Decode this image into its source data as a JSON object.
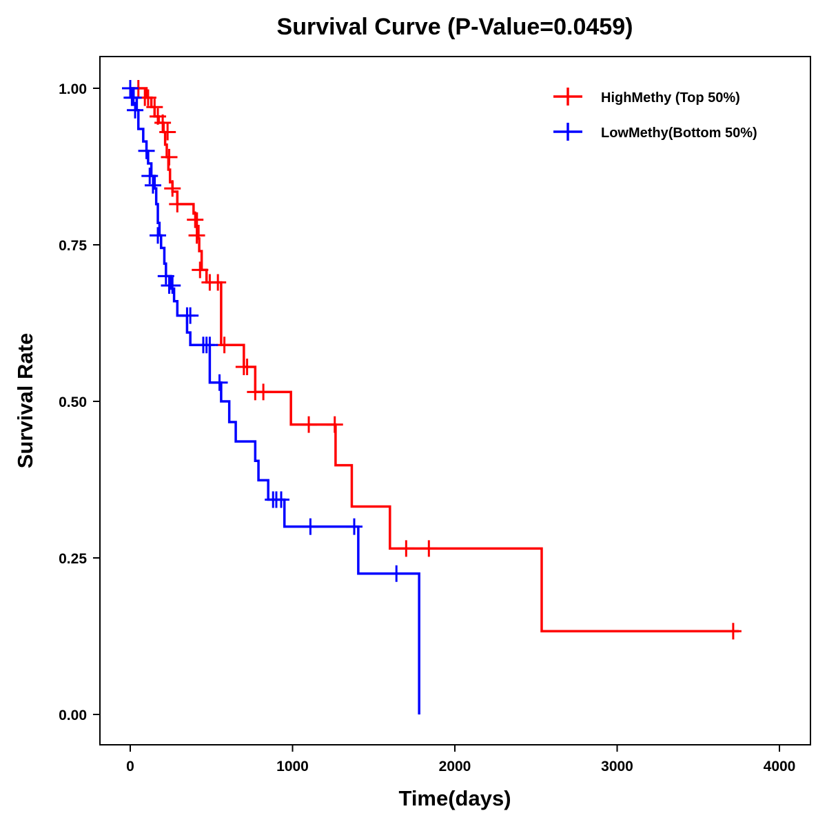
{
  "chart_data": {
    "type": "line",
    "subtype": "kaplan-meier",
    "title": "Survival Curve (P-Value=0.0459)",
    "xlabel": "Time(days)",
    "ylabel": "Survival Rate",
    "xlim": [
      -200,
      4200
    ],
    "ylim": [
      -0.05,
      1.05
    ],
    "xticks": [
      0,
      1000,
      2000,
      3000,
      4000
    ],
    "xtick_labels": [
      "0",
      "1000",
      "2000",
      "3000",
      "4000"
    ],
    "yticks": [
      0,
      0.25,
      0.5,
      0.75,
      1.0
    ],
    "ytick_labels": [
      "0.00",
      "0.25",
      "0.50",
      "0.75",
      "1.00"
    ],
    "legend_position": "top-right",
    "series": [
      {
        "name": "HighMethy (Top 50%)",
        "color": "#ff0000",
        "steps": [
          [
            0,
            1.0
          ],
          [
            100,
            0.985
          ],
          [
            130,
            0.97
          ],
          [
            150,
            0.955
          ],
          [
            175,
            0.945
          ],
          [
            205,
            0.93
          ],
          [
            215,
            0.91
          ],
          [
            225,
            0.89
          ],
          [
            235,
            0.87
          ],
          [
            245,
            0.85
          ],
          [
            260,
            0.835
          ],
          [
            290,
            0.815
          ],
          [
            390,
            0.8
          ],
          [
            410,
            0.78
          ],
          [
            420,
            0.76
          ],
          [
            425,
            0.74
          ],
          [
            440,
            0.71
          ],
          [
            470,
            0.69
          ],
          [
            560,
            0.59
          ],
          [
            700,
            0.555
          ],
          [
            770,
            0.515
          ],
          [
            990,
            0.463
          ],
          [
            1265,
            0.398
          ],
          [
            1365,
            0.332
          ],
          [
            1600,
            0.265
          ],
          [
            2535,
            0.133
          ]
        ],
        "end_time": 3750,
        "censored": [
          [
            50,
            1.0
          ],
          [
            90,
            0.985
          ],
          [
            110,
            0.985
          ],
          [
            150,
            0.97
          ],
          [
            170,
            0.955
          ],
          [
            200,
            0.945
          ],
          [
            230,
            0.93
          ],
          [
            240,
            0.89
          ],
          [
            260,
            0.84
          ],
          [
            290,
            0.815
          ],
          [
            400,
            0.79
          ],
          [
            410,
            0.765
          ],
          [
            430,
            0.71
          ],
          [
            490,
            0.69
          ],
          [
            540,
            0.69
          ],
          [
            580,
            0.59
          ],
          [
            700,
            0.555
          ],
          [
            720,
            0.555
          ],
          [
            770,
            0.515
          ],
          [
            820,
            0.515
          ],
          [
            1100,
            0.463
          ],
          [
            1260,
            0.463
          ],
          [
            1700,
            0.265
          ],
          [
            1840,
            0.265
          ],
          [
            3715,
            0.133
          ]
        ]
      },
      {
        "name": "LowMethy(Bottom 50%)",
        "color": "#0000ff",
        "steps": [
          [
            0,
            1.0
          ],
          [
            20,
            0.985
          ],
          [
            40,
            0.965
          ],
          [
            50,
            0.935
          ],
          [
            80,
            0.915
          ],
          [
            100,
            0.9
          ],
          [
            110,
            0.88
          ],
          [
            130,
            0.86
          ],
          [
            150,
            0.84
          ],
          [
            160,
            0.815
          ],
          [
            170,
            0.785
          ],
          [
            180,
            0.765
          ],
          [
            190,
            0.745
          ],
          [
            210,
            0.72
          ],
          [
            220,
            0.7
          ],
          [
            250,
            0.68
          ],
          [
            270,
            0.66
          ],
          [
            290,
            0.637
          ],
          [
            350,
            0.61
          ],
          [
            370,
            0.59
          ],
          [
            490,
            0.53
          ],
          [
            560,
            0.5
          ],
          [
            610,
            0.467
          ],
          [
            650,
            0.436
          ],
          [
            770,
            0.405
          ],
          [
            790,
            0.374
          ],
          [
            850,
            0.343
          ],
          [
            950,
            0.3
          ],
          [
            1405,
            0.225
          ],
          [
            1780,
            0.0
          ]
        ],
        "end_time": 1780,
        "censored": [
          [
            0,
            1.0
          ],
          [
            10,
            0.985
          ],
          [
            20,
            0.985
          ],
          [
            30,
            0.965
          ],
          [
            100,
            0.9
          ],
          [
            120,
            0.86
          ],
          [
            140,
            0.845
          ],
          [
            170,
            0.765
          ],
          [
            220,
            0.7
          ],
          [
            240,
            0.685
          ],
          [
            260,
            0.685
          ],
          [
            350,
            0.637
          ],
          [
            370,
            0.637
          ],
          [
            450,
            0.59
          ],
          [
            470,
            0.59
          ],
          [
            490,
            0.59
          ],
          [
            550,
            0.53
          ],
          [
            880,
            0.343
          ],
          [
            900,
            0.343
          ],
          [
            930,
            0.343
          ],
          [
            1110,
            0.3
          ],
          [
            1380,
            0.3
          ],
          [
            1640,
            0.225
          ]
        ]
      }
    ]
  }
}
